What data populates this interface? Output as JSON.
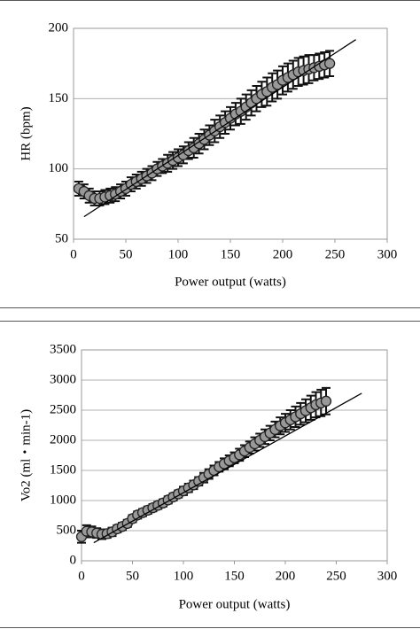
{
  "chart_data": [
    {
      "type": "scatter",
      "x_label": "Power output (watts)",
      "y_label": "HR (bpm)",
      "x": [
        5,
        10,
        15,
        20,
        25,
        30,
        35,
        40,
        45,
        50,
        55,
        60,
        65,
        70,
        75,
        80,
        85,
        90,
        95,
        100,
        105,
        110,
        115,
        120,
        125,
        130,
        135,
        140,
        145,
        150,
        155,
        160,
        165,
        170,
        175,
        180,
        185,
        190,
        195,
        200,
        205,
        210,
        215,
        220,
        225,
        230,
        235,
        240,
        245
      ],
      "series": [
        {
          "color": "#999999",
          "values": [
            86,
            84,
            81,
            79,
            79,
            80,
            81,
            82,
            84,
            86,
            89,
            91,
            93,
            95,
            97,
            100,
            102,
            104,
            106,
            108,
            110,
            113,
            115,
            118,
            121,
            124,
            127,
            130,
            133,
            136,
            139,
            141,
            144,
            147,
            150,
            153,
            155,
            158,
            160,
            163,
            165,
            167,
            169,
            170,
            171,
            172,
            173,
            174,
            175
          ],
          "errors": [
            5,
            5,
            5,
            5,
            5,
            5,
            5,
            5,
            5,
            5,
            5,
            5,
            5,
            5,
            5,
            5,
            5,
            6,
            6,
            6,
            6,
            6,
            7,
            7,
            7,
            7,
            8,
            8,
            8,
            8,
            8,
            9,
            9,
            9,
            9,
            9,
            10,
            10,
            10,
            10,
            10,
            10,
            10,
            10,
            10,
            9,
            9,
            9,
            9
          ]
        }
      ],
      "fit": {
        "x": [
          10,
          270
        ],
        "y": [
          66,
          192
        ]
      },
      "xlim": [
        0,
        300
      ],
      "xticks": [
        0,
        50,
        100,
        150,
        200,
        250,
        300
      ],
      "ylim": [
        50,
        200
      ],
      "yticks": [
        50,
        100,
        150,
        200
      ],
      "grid": true
    },
    {
      "type": "scatter",
      "x_label": "Power output (watts)",
      "y_label": "Vo2 (ml・min-1)",
      "x": [
        0,
        5,
        10,
        15,
        20,
        25,
        30,
        35,
        40,
        45,
        50,
        55,
        60,
        65,
        70,
        75,
        80,
        85,
        90,
        95,
        100,
        105,
        110,
        115,
        120,
        125,
        130,
        135,
        140,
        145,
        150,
        155,
        160,
        165,
        170,
        175,
        180,
        185,
        190,
        195,
        200,
        205,
        210,
        215,
        220,
        225,
        230,
        235,
        240
      ],
      "series": [
        {
          "color": "#999999",
          "values": [
            400,
            490,
            480,
            460,
            440,
            450,
            480,
            530,
            570,
            620,
            700,
            760,
            800,
            840,
            880,
            920,
            960,
            1010,
            1060,
            1110,
            1160,
            1210,
            1260,
            1320,
            1380,
            1440,
            1500,
            1560,
            1610,
            1660,
            1710,
            1760,
            1820,
            1880,
            1940,
            2000,
            2060,
            2120,
            2180,
            2240,
            2290,
            2340,
            2390,
            2440,
            2490,
            2540,
            2590,
            2620,
            2650
          ],
          "errors": [
            100,
            100,
            90,
            80,
            80,
            70,
            70,
            60,
            60,
            60,
            60,
            60,
            60,
            60,
            60,
            60,
            60,
            60,
            60,
            60,
            70,
            70,
            70,
            70,
            80,
            80,
            80,
            80,
            90,
            90,
            90,
            100,
            100,
            100,
            110,
            110,
            120,
            120,
            130,
            140,
            150,
            160,
            170,
            180,
            190,
            200,
            210,
            220,
            220
          ]
        }
      ],
      "fit": {
        "x": [
          12,
          275
        ],
        "y": [
          300,
          2780
        ]
      },
      "xlim": [
        0,
        300
      ],
      "xticks": [
        0,
        50,
        100,
        150,
        200,
        250,
        300
      ],
      "ylim": [
        0,
        3500
      ],
      "yticks": [
        0,
        500,
        1000,
        1500,
        2000,
        2500,
        3000,
        3500
      ],
      "grid": true
    }
  ]
}
